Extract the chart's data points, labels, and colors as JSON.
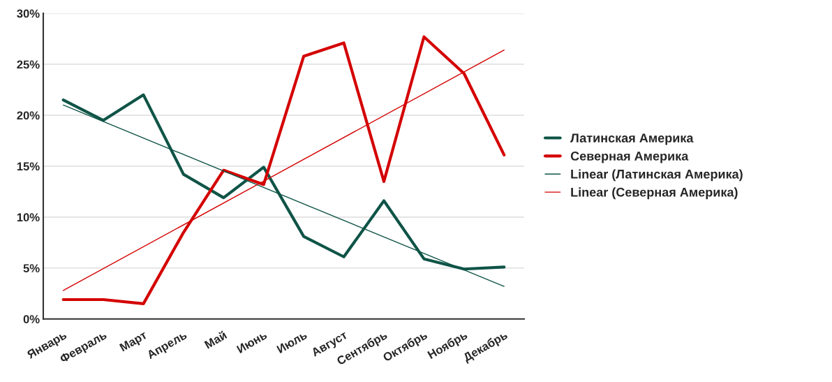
{
  "chart_data": {
    "type": "line",
    "categories": [
      "Январь",
      "Февраль",
      "Март",
      "Апрель",
      "Май",
      "Июнь",
      "Июль",
      "Август",
      "Сентябрь",
      "Октябрь",
      "Ноябрь",
      "Декабрь"
    ],
    "series": [
      {
        "name": "Латинская Америка",
        "color": "#0f5447",
        "values": [
          21.5,
          19.5,
          22.0,
          14.2,
          11.9,
          14.9,
          8.1,
          6.1,
          11.6,
          5.9,
          4.9,
          5.1
        ]
      },
      {
        "name": "Северная Америка",
        "color": "#d40000",
        "values": [
          1.9,
          1.9,
          1.5,
          8.5,
          14.6,
          13.2,
          25.8,
          27.1,
          13.5,
          27.7,
          24.1,
          16.1
        ]
      },
      {
        "name": "Linear (Латинская Америка)",
        "type": "line",
        "color": "#0f5447",
        "x": [
          "Январь",
          "Декабрь"
        ],
        "values": [
          21.0,
          3.2
        ]
      },
      {
        "name": "Linear (Северная Америка)",
        "type": "line",
        "color": "#d40000",
        "x": [
          "Январь",
          "Декабрь"
        ],
        "values": [
          2.8,
          26.4
        ]
      }
    ],
    "ylim": [
      0,
      30
    ],
    "yticks": [
      {
        "value": 0,
        "label": "0%"
      },
      {
        "value": 5,
        "label": "5%"
      },
      {
        "value": 10,
        "label": "10%"
      },
      {
        "value": 15,
        "label": "15%"
      },
      {
        "value": 20,
        "label": "20%"
      },
      {
        "value": 25,
        "label": "25%"
      },
      {
        "value": 30,
        "label": "30%"
      }
    ],
    "grid": "y",
    "legend": "right",
    "line_style": "solid",
    "marker": "none"
  }
}
